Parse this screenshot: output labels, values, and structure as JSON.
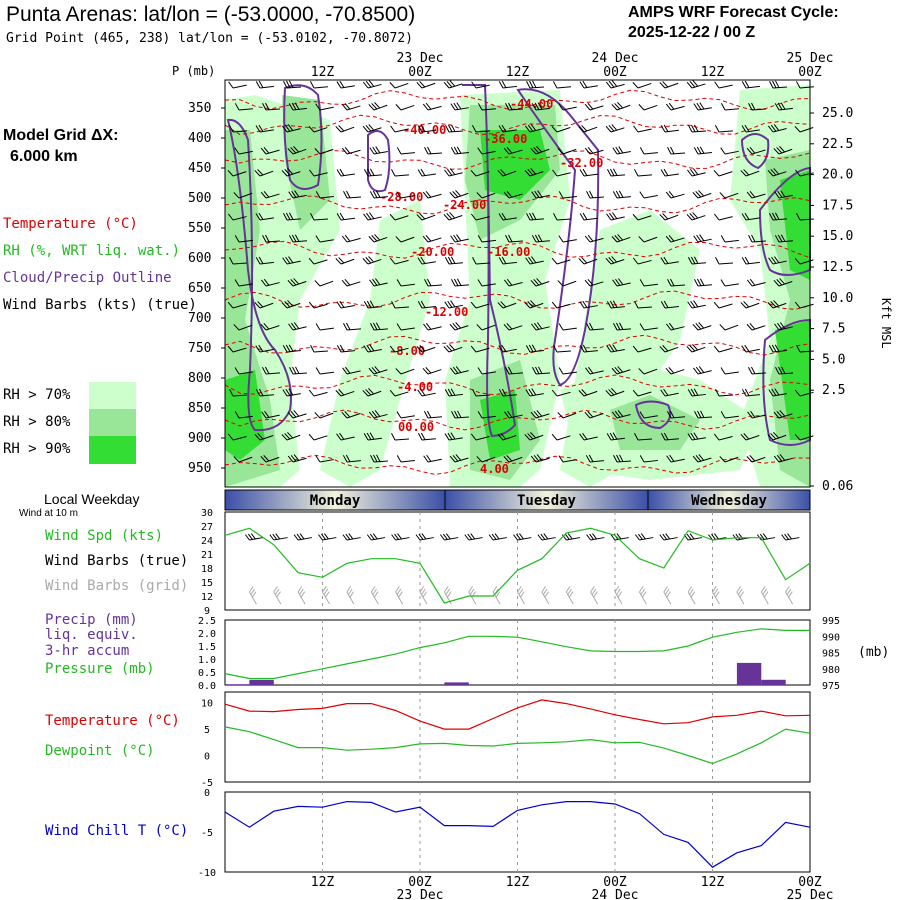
{
  "header": {
    "title": "Punta Arenas:  lat/lon = (-53.0000, -70.8500)",
    "grid_point": "Grid Point (465, 238) lat/lon = (-53.0102, -70.8072)",
    "cycle_label": "AMPS WRF Forecast Cycle:",
    "cycle_value": "2025-12-22 / 00  Z"
  },
  "left_labels": {
    "model_grid": "Model Grid ΔX:",
    "model_dx": "6.000 km",
    "temperature": "Temperature (°C)",
    "rh": "RH (%, WRT liq. wat.)",
    "cloud": "Cloud/Precip Outline",
    "wind_barbs": "Wind Barbs (kts) (true)",
    "rh70": "RH > 70%",
    "rh80": "RH > 80%",
    "rh90": "RH > 90%",
    "local_weekday": "Local Weekday",
    "wind_10m": "Wind at 10 m",
    "wind_spd": "Wind Spd (kts)",
    "wind_barbs_true": "Wind Barbs (true)",
    "wind_barbs_grid": "Wind Barbs (grid)",
    "precip1": "Precip (mm)",
    "precip2": "liq. equiv.",
    "precip3": "3-hr accum",
    "pressure": "Pressure (mb)",
    "temp2": "Temperature (°C)",
    "dewpoint": "Dewpoint (°C)",
    "windchill": "Wind Chill T (°C)"
  },
  "colors": {
    "rh70": "#ccffcc",
    "rh80": "#99e699",
    "rh90": "#33dd33",
    "temperature": "#dd0000",
    "cloud": "#663399",
    "windspd": "#22bb22",
    "precip": "#663399",
    "windchill": "#0000cc",
    "grid_barb": "#aaaaaa"
  },
  "chart_data": [
    {
      "type": "heatmap",
      "panel": "cross-section",
      "ylabel_left": "P (mb)",
      "ylabel_right": "Kft MSL",
      "y_ticks": [
        "350",
        "400",
        "450",
        "500",
        "550",
        "600",
        "650",
        "700",
        "750",
        "800",
        "850",
        "900",
        "950"
      ],
      "right_ticks": [
        "25.0",
        "22.5",
        "20.0",
        "17.5",
        "15.0",
        "12.5",
        "10.0",
        "7.5",
        "5.0",
        "2.5",
        "0.06"
      ],
      "x_ticks_top": [
        {
          "time": "12Z",
          "date": ""
        },
        {
          "time": "00Z",
          "date": "23 Dec"
        },
        {
          "time": "12Z",
          "date": ""
        },
        {
          "time": "00Z",
          "date": "24 Dec"
        },
        {
          "time": "12Z",
          "date": ""
        },
        {
          "time": "00Z",
          "date": "25 Dec"
        }
      ],
      "temperature_labels": [
        "-44.00",
        "-40.00",
        "-36.00",
        "-32.00",
        "-28.00",
        "-24.00",
        "-20.00",
        "-16.00",
        "-12.00",
        "-8.00",
        "-4.00",
        "00.00",
        "4.00"
      ]
    },
    {
      "type": "line",
      "panel": "weekday",
      "days": [
        "Monday",
        "Tuesday",
        "Wednesday"
      ]
    },
    {
      "type": "line",
      "panel": "wind",
      "ylim": [
        9,
        30
      ],
      "y_ticks": [
        "30",
        "27",
        "24",
        "21",
        "18",
        "15",
        "12",
        "9"
      ],
      "x": [
        0,
        3,
        6,
        9,
        12,
        15,
        18,
        21,
        24,
        27,
        30,
        33,
        36,
        39,
        42,
        45,
        48,
        51,
        54,
        57,
        60,
        63,
        66,
        69,
        72
      ],
      "series": [
        {
          "name": "Wind Spd (kts)",
          "values": [
            25,
            26.5,
            23,
            17,
            16,
            19,
            20,
            20,
            19,
            10.5,
            12,
            12,
            17.5,
            20,
            25.5,
            26.5,
            25,
            20,
            18,
            26,
            24,
            24.5,
            24.5,
            15.5,
            19
          ]
        }
      ]
    },
    {
      "type": "bar",
      "panel": "precip-pressure",
      "ylim": [
        0,
        2.5
      ],
      "y_ticks": [
        "2.5",
        "2.0",
        "1.5",
        "1.0",
        "0.5",
        "0.0"
      ],
      "right_ticks": [
        "995",
        "990",
        "985",
        "980",
        "975"
      ],
      "right_unit": "(mb)",
      "precip": {
        "x": [
          3,
          6,
          30,
          66,
          69
        ],
        "values": [
          0.03,
          0.2,
          0.1,
          0.85,
          0.2
        ]
      },
      "series": [
        {
          "name": "Pressure (mb)",
          "x": [
            0,
            3,
            6,
            9,
            12,
            15,
            18,
            21,
            24,
            27,
            30,
            33,
            36,
            39,
            42,
            45,
            48,
            51,
            54,
            57,
            60,
            63,
            66,
            69,
            72
          ],
          "values": [
            978.5,
            977,
            977,
            978.5,
            980,
            981.5,
            983,
            984.5,
            986.5,
            988,
            990,
            990,
            989.7,
            988.3,
            986.8,
            985.5,
            985.3,
            985.3,
            985.5,
            987,
            989.7,
            991.2,
            992.3,
            991.8,
            991.8
          ]
        }
      ]
    },
    {
      "type": "line",
      "panel": "temperature",
      "ylim": [
        -5,
        12
      ],
      "y_ticks": [
        "10",
        "5",
        "0",
        "-5"
      ],
      "x": [
        0,
        3,
        6,
        9,
        12,
        15,
        18,
        21,
        24,
        27,
        30,
        33,
        36,
        39,
        42,
        45,
        48,
        51,
        54,
        57,
        60,
        63,
        66,
        69,
        72
      ],
      "series": [
        {
          "name": "Temperature (°C)",
          "values": [
            9.7,
            8.4,
            8.3,
            8.7,
            8.9,
            9.8,
            9.8,
            8.5,
            6.5,
            5,
            5,
            7,
            9,
            10.5,
            9.8,
            8.8,
            7.7,
            6.8,
            6,
            6.2,
            7.3,
            7.6,
            8.4,
            7.5,
            7.6
          ]
        },
        {
          "name": "Dewpoint (°C)",
          "values": [
            5.4,
            4.5,
            3,
            1.5,
            1.5,
            1,
            1.2,
            1.5,
            2.2,
            2.3,
            1.9,
            1.8,
            2.3,
            2.4,
            2.6,
            3,
            2.4,
            2.5,
            1.4,
            0,
            -1.5,
            0.3,
            2.4,
            5,
            4.2
          ]
        }
      ]
    },
    {
      "type": "line",
      "panel": "windchill",
      "ylim": [
        -10,
        0
      ],
      "y_ticks": [
        "0",
        "-5",
        "-10"
      ],
      "x_ticks_bottom": [
        {
          "time": "12Z",
          "date": ""
        },
        {
          "time": "00Z",
          "date": "23 Dec"
        },
        {
          "time": "12Z",
          "date": ""
        },
        {
          "time": "00Z",
          "date": "24 Dec"
        },
        {
          "time": "12Z",
          "date": ""
        },
        {
          "time": "00Z",
          "date": "25 Dec"
        }
      ],
      "x": [
        0,
        3,
        6,
        9,
        12,
        15,
        18,
        21,
        24,
        27,
        30,
        33,
        36,
        39,
        42,
        45,
        48,
        51,
        54,
        57,
        60,
        63,
        66,
        69,
        72
      ],
      "series": [
        {
          "name": "Wind Chill T (°C)",
          "values": [
            -2.5,
            -4.4,
            -2.4,
            -1.8,
            -1.9,
            -1.2,
            -1.3,
            -2.5,
            -1.9,
            -4.2,
            -4.2,
            -4.3,
            -2.3,
            -1.6,
            -1.2,
            -1.2,
            -1.5,
            -2.7,
            -5.3,
            -6.3,
            -9.4,
            -7.6,
            -6.7,
            -3.8,
            -4.4
          ]
        }
      ]
    }
  ]
}
